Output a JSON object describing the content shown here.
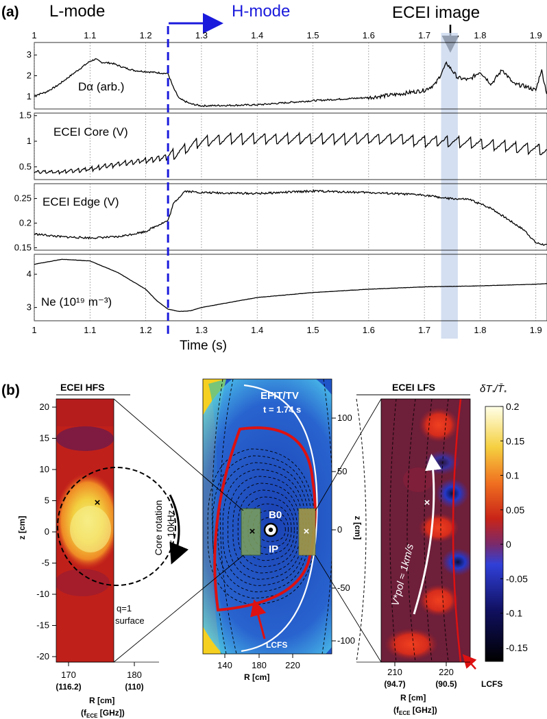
{
  "panel_a": {
    "label": "(a)",
    "lmode_label": "L-mode",
    "hmode_label": "H-mode",
    "ecei_image_label": "ECEI image",
    "xlabel": "Time (s)",
    "chart_data": {
      "type": "line",
      "x_range": [
        1.0,
        1.92
      ],
      "x_ticks": [
        "1",
        "1.1",
        "1.2",
        "1.3",
        "1.4",
        "1.5",
        "1.6",
        "1.7",
        "1.8",
        "1.9"
      ],
      "lh_transition_time": 1.24,
      "ecei_image_window": [
        1.73,
        1.76
      ],
      "series": [
        {
          "name": "Dα (arb.)",
          "ylim": [
            0.4,
            3.6
          ],
          "yticks": [
            "1",
            "2",
            "3"
          ],
          "ytick_values": [
            1,
            2,
            3
          ],
          "x": [
            1.0,
            1.02,
            1.04,
            1.06,
            1.08,
            1.1,
            1.11,
            1.12,
            1.14,
            1.16,
            1.18,
            1.2,
            1.22,
            1.24,
            1.25,
            1.26,
            1.28,
            1.3,
            1.4,
            1.5,
            1.6,
            1.65,
            1.7,
            1.72,
            1.74,
            1.76,
            1.78,
            1.8,
            1.82,
            1.84,
            1.86,
            1.88,
            1.9,
            1.91,
            1.92
          ],
          "y": [
            1.05,
            1.2,
            1.5,
            1.9,
            2.3,
            2.7,
            2.8,
            2.65,
            2.6,
            2.4,
            2.25,
            2.2,
            2.15,
            2.1,
            1.4,
            0.9,
            0.65,
            0.55,
            0.6,
            0.8,
            0.95,
            1.1,
            1.3,
            1.6,
            2.6,
            1.9,
            1.8,
            2.2,
            1.6,
            2.3,
            1.6,
            1.5,
            1.3,
            2.3,
            1.1
          ]
        },
        {
          "name": "ECEI Core (V)",
          "ylim": [
            0.25,
            1.55
          ],
          "yticks": [
            "0.5",
            "1",
            "1.5"
          ],
          "ytick_values": [
            0.5,
            1,
            1.5
          ],
          "x": [
            1.0,
            1.05,
            1.1,
            1.15,
            1.2,
            1.24,
            1.28,
            1.3,
            1.35,
            1.4,
            1.45,
            1.5,
            1.55,
            1.6,
            1.65,
            1.7,
            1.75,
            1.8,
            1.85,
            1.9,
            1.92
          ],
          "y": [
            0.4,
            0.4,
            0.45,
            0.55,
            0.62,
            0.7,
            0.9,
            1.0,
            1.05,
            1.05,
            1.05,
            1.05,
            1.05,
            1.05,
            1.05,
            1.0,
            1.0,
            0.95,
            0.9,
            0.85,
            0.8
          ]
        },
        {
          "name": "ECEI Edge (V)",
          "ylim": [
            0.145,
            0.28
          ],
          "yticks": [
            "0.15",
            "0.2",
            "0.25"
          ],
          "ytick_values": [
            0.15,
            0.2,
            0.25
          ],
          "x": [
            1.0,
            1.05,
            1.1,
            1.15,
            1.2,
            1.22,
            1.24,
            1.25,
            1.27,
            1.3,
            1.4,
            1.5,
            1.6,
            1.7,
            1.74,
            1.78,
            1.82,
            1.86,
            1.88,
            1.9,
            1.92
          ],
          "y": [
            0.178,
            0.172,
            0.17,
            0.172,
            0.183,
            0.195,
            0.205,
            0.24,
            0.265,
            0.262,
            0.26,
            0.265,
            0.262,
            0.257,
            0.25,
            0.248,
            0.23,
            0.2,
            0.185,
            0.16,
            0.155
          ]
        },
        {
          "name": "Ne (10¹⁹ m⁻³)",
          "ylim": [
            2.6,
            4.6
          ],
          "yticks": [
            "3",
            "4"
          ],
          "ytick_values": [
            3,
            4
          ],
          "x": [
            1.0,
            1.05,
            1.1,
            1.15,
            1.2,
            1.22,
            1.24,
            1.26,
            1.28,
            1.3,
            1.4,
            1.5,
            1.6,
            1.7,
            1.8,
            1.9,
            1.92
          ],
          "y": [
            4.3,
            4.45,
            4.4,
            4.05,
            3.55,
            3.2,
            2.95,
            2.88,
            2.9,
            3.0,
            3.3,
            3.45,
            3.55,
            3.62,
            3.65,
            3.7,
            3.72
          ]
        }
      ]
    }
  },
  "panel_b": {
    "label": "(b)",
    "hfs": {
      "title": "ECEI HFS",
      "ylabel": "z [cm]",
      "yticks": [
        "20",
        "15",
        "10",
        "5",
        "0",
        "-5",
        "-10",
        "-15",
        "-20"
      ],
      "xticks": [
        "170",
        "180"
      ],
      "xticks_sub": [
        "(116.2)",
        "(110)"
      ],
      "xlabel_1": "R [cm]",
      "xlabel_2": "(fECE [GHz])",
      "rotation_line1": "Core rotation",
      "rotation_line2": "~ 10kHz",
      "q1_line1": "q=1",
      "q1_line2": "surface",
      "colors": {
        "bg": "#c0201a",
        "hot": "#f2e040",
        "warm": "#f08020",
        "cool": "#6a1a4e"
      }
    },
    "efit": {
      "title": "EFIT/TV",
      "time": "t = 1.74 s",
      "b0_label": "B0",
      "ip_label": "IP",
      "lcfs_label": "LCFS",
      "xticks": [
        "140",
        "180",
        "220"
      ],
      "xlabel": "R [cm]",
      "yticks": [
        "100",
        "50",
        "0",
        "-50",
        "-100"
      ],
      "ylabel": "z [cm]",
      "colors": {
        "bg": "#1f55c8",
        "glow": "#3aa0e8",
        "edge": "#f5d020",
        "lcfs": "#dd1111",
        "box": "#7da05a"
      }
    },
    "lfs": {
      "title": "ECEI LFS",
      "xticks": [
        "210",
        "220"
      ],
      "xticks_sub": [
        "(94.7)",
        "(90.5)"
      ],
      "xlabel_1": "R [cm]",
      "xlabel_2": "(fECE [GHz])",
      "velocity_label": "V*pol ≈ 1km/s",
      "lcfs_label": "LCFS",
      "colors": {
        "bg": "#6e1f3a",
        "red": "#e0301c",
        "blue": "#2430c8",
        "dark": "#0a0a30"
      }
    },
    "colorbar": {
      "title": "δT*/T̄*",
      "ticks": [
        "0.2",
        "0.15",
        "0.1",
        "0.05",
        "0",
        "-0.05",
        "-0.1",
        "-0.15"
      ],
      "tick_values": [
        0.2,
        0.15,
        0.1,
        0.05,
        0,
        -0.05,
        -0.1,
        -0.15
      ],
      "range": [
        -0.17,
        0.2
      ]
    }
  }
}
